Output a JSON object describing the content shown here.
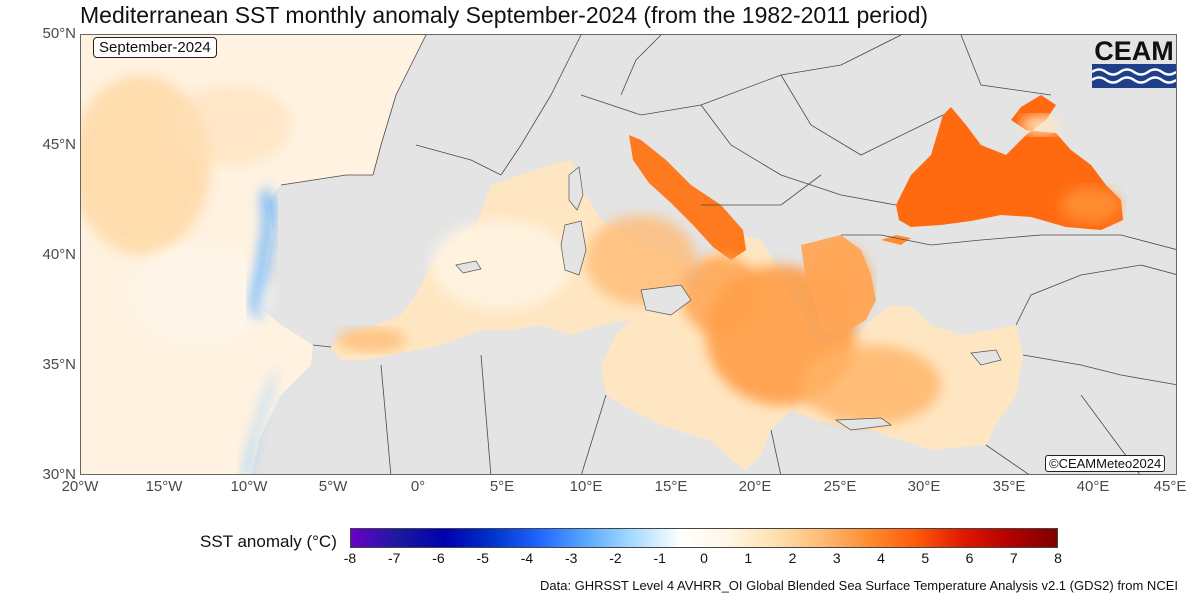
{
  "title": "Mediterranean SST monthly anomaly September-2024 (from the 1982-2011 period)",
  "month_label": "September-2024",
  "credit": "©CEAMMeteo2024",
  "logo_text": "CEAM",
  "data_source": "Data: GHRSST Level 4 AVHRR_OI Global Blended Sea Surface Temperature Analysis v2.1 (GDS2) from NCEI",
  "axes": {
    "y_ticks": [
      "50°N",
      "45°N",
      "40°N",
      "35°N",
      "30°N"
    ],
    "x_ticks": [
      "20°W",
      "15°W",
      "10°W",
      "5°W",
      "0°",
      "5°E",
      "10°E",
      "15°E",
      "20°E",
      "25°E",
      "30°E",
      "35°E",
      "40°E",
      "45°E"
    ]
  },
  "colorbar": {
    "label": "SST anomaly (°C)",
    "ticks": [
      "-8",
      "-7",
      "-6",
      "-5",
      "-4",
      "-3",
      "-2",
      "-1",
      "0",
      "1",
      "2",
      "3",
      "4",
      "5",
      "6",
      "7",
      "8"
    ],
    "colors": [
      "#6a00c8",
      "#1a1aa0",
      "#0000b0",
      "#0033cc",
      "#1f66ff",
      "#59a8ff",
      "#a8dcff",
      "#ffffff",
      "#fff7e6",
      "#ffe1b0",
      "#ffbb74",
      "#ff8c30",
      "#ff5a0a",
      "#e01800",
      "#b40000",
      "#800000"
    ]
  },
  "map": {
    "extent": {
      "lon": [
        -20,
        45
      ],
      "lat": [
        30,
        50
      ]
    },
    "colors": {
      "land": "#e4e4e4",
      "border": "#444444",
      "atlantic": "#fff0dc",
      "mediterranean": "#ffd8a8",
      "adriatic": "#ff7a1e",
      "black_sea": "#ff6a10",
      "aegean": "#ff9a40"
    }
  }
}
